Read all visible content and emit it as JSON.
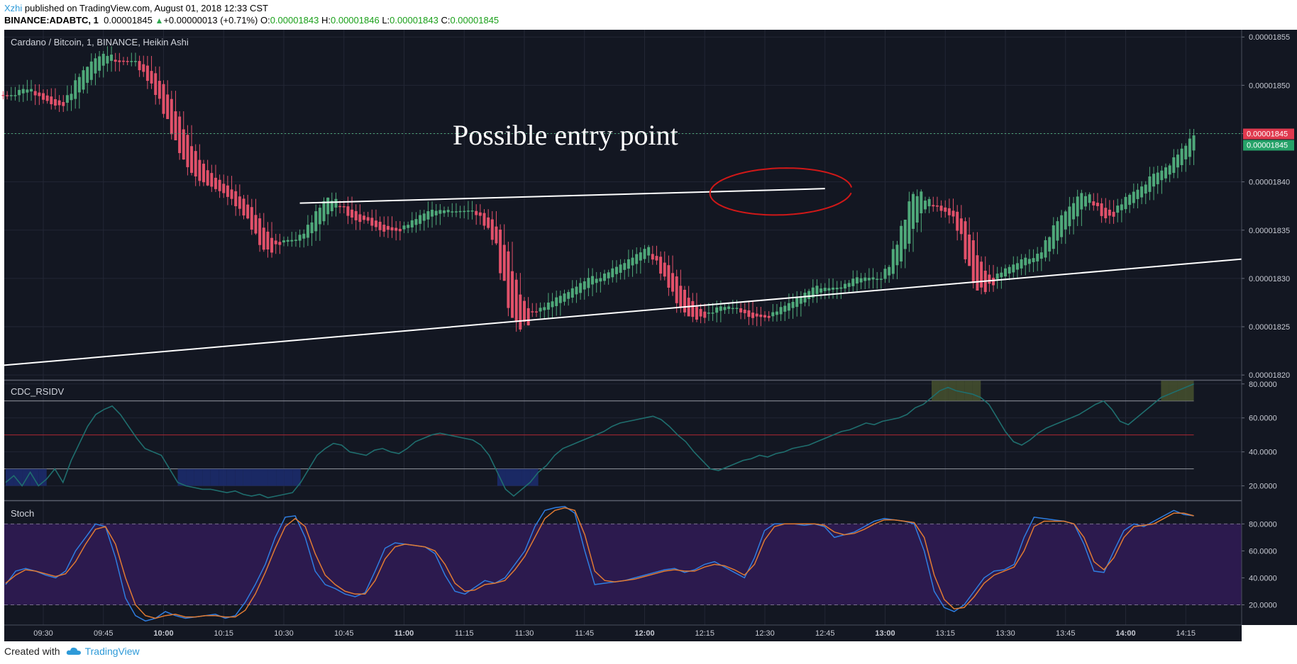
{
  "header": {
    "author": "Xzhi",
    "published_text": "published on TradingView.com, August 01, 2018 12:33 CST",
    "symbol": "BINANCE:ADABTC, 1",
    "last_price": "0.00001845",
    "change": "+0.00000013 (+0.71%)",
    "o_label": "O:",
    "o_value": "0.00001843",
    "h_label": "H:",
    "h_value": "0.00001846",
    "l_label": "L:",
    "l_value": "0.00001843",
    "c_label": "C:",
    "c_value": "0.00001845"
  },
  "footer": {
    "created_with": "Created with",
    "brand": "TradingView"
  },
  "chart_data": [
    {
      "type": "candlestick",
      "title": "Cardano / Bitcoin, 1, BINANCE, Heikin Ashi",
      "annotation": "Possible entry point",
      "y_ticks": [
        "0.00001855",
        "0.00001850",
        "0.00001845",
        "0.00001840",
        "0.00001835",
        "0.00001830",
        "0.00001825",
        "0.00001820"
      ],
      "ylim": [
        1.8195e-05,
        1.85575e-05
      ],
      "price_labels": [
        {
          "text": "0.00001845",
          "value": 1.845e-05,
          "color": "#e0394e"
        },
        {
          "text": "0.00001845",
          "value": 1.845e-05,
          "color": "#26a269"
        }
      ],
      "x_ticks": [
        "09:30",
        "09:45",
        "10:00",
        "10:15",
        "10:30",
        "10:45",
        "11:00",
        "11:15",
        "11:30",
        "11:45",
        "12:00",
        "12:15",
        "12:30",
        "12:45",
        "13:00",
        "13:15",
        "13:30",
        "13:45",
        "14:00",
        "14:15"
      ],
      "bold_x_ticks": [
        "10:00",
        "11:00",
        "12:00",
        "13:00",
        "14:00"
      ],
      "start_time": "09:20",
      "close_series_time": "09:20",
      "close_series": [
        1.849e-05,
        1.849e-05,
        1.85e-05,
        1.849e-05,
        1.849e-05,
        1.848e-05,
        1.848e-05,
        1.848e-05,
        1.85e-05,
        1.851e-05,
        1.852e-05,
        1.853e-05,
        1.853e-05,
        1.853e-05,
        1.852e-05,
        1.853e-05,
        1.852e-05,
        1.851e-05,
        1.85e-05,
        1.848e-05,
        1.846e-05,
        1.844e-05,
        1.842e-05,
        1.841e-05,
        1.84e-05,
        1.84e-05,
        1.839e-05,
        1.839e-05,
        1.838e-05,
        1.837e-05,
        1.836e-05,
        1.834e-05,
        1.833e-05,
        1.833e-05,
        1.834e-05,
        1.834e-05,
        1.834e-05,
        1.835e-05,
        1.836e-05,
        1.838e-05,
        1.838e-05,
        1.838e-05,
        1.837e-05,
        1.836e-05,
        1.836e-05,
        1.836e-05,
        1.835e-05,
        1.835e-05,
        1.835e-05,
        1.835e-05,
        1.836e-05,
        1.836e-05,
        1.837e-05,
        1.837e-05,
        1.837e-05,
        1.837e-05,
        1.837e-05,
        1.837e-05,
        1.837e-05,
        1.836e-05,
        1.835e-05,
        1.833e-05,
        1.828e-05,
        1.826e-05,
        1.825e-05,
        1.826e-05,
        1.827e-05,
        1.827e-05,
        1.828e-05,
        1.828e-05,
        1.829e-05,
        1.829e-05,
        1.83e-05,
        1.83e-05,
        1.83e-05,
        1.831e-05,
        1.831e-05,
        1.832e-05,
        1.832e-05,
        1.833e-05,
        1.833e-05,
        1.831e-05,
        1.83e-05,
        1.828e-05,
        1.827e-05,
        1.826e-05,
        1.826e-05,
        1.826e-05,
        1.827e-05,
        1.827e-05,
        1.827e-05,
        1.827e-05,
        1.826e-05,
        1.826e-05,
        1.826e-05,
        1.826e-05,
        1.827e-05,
        1.827e-05,
        1.828e-05,
        1.828e-05,
        1.829e-05,
        1.829e-05,
        1.829e-05,
        1.829e-05,
        1.829e-05,
        1.83e-05,
        1.83e-05,
        1.83e-05,
        1.83e-05,
        1.83e-05,
        1.832e-05,
        1.834e-05,
        1.837e-05,
        1.839e-05,
        1.838e-05,
        1.838e-05,
        1.837e-05,
        1.837e-05,
        1.836e-05,
        1.834e-05,
        1.83e-05,
        1.829e-05,
        1.829e-05,
        1.83e-05,
        1.831e-05,
        1.831e-05,
        1.832e-05,
        1.832e-05,
        1.832e-05,
        1.833e-05,
        1.835e-05,
        1.836e-05,
        1.837e-05,
        1.838e-05,
        1.839e-05,
        1.838e-05,
        1.837e-05,
        1.836e-05,
        1.837e-05,
        1.838e-05,
        1.839e-05,
        1.839e-05,
        1.84e-05,
        1.841e-05,
        1.841e-05,
        1.842e-05,
        1.843e-05,
        1.844e-05,
        1.845e-05
      ],
      "trendlines": [
        {
          "from": {
            "time": "09:20",
            "price": 1.821e-05
          },
          "to": {
            "time": "14:45",
            "price": 1.832e-05
          }
        },
        {
          "from": {
            "time": "10:34",
            "price": 1.8378e-05
          },
          "to": {
            "time": "12:45",
            "price": 1.8393e-05
          }
        }
      ],
      "ellipse": {
        "center": {
          "time": "12:34",
          "price": 1.839e-05
        },
        "color": "#d01818"
      }
    },
    {
      "type": "line",
      "title": "CDC_RSIDV",
      "y_ticks": [
        "80.0000",
        "60.0000",
        "40.0000",
        "20.0000"
      ],
      "ylim": [
        11.5,
        82
      ],
      "levels": [
        70,
        50,
        30
      ],
      "series": [
        {
          "values": [
            22,
            26,
            20,
            28,
            20,
            24,
            30,
            22,
            35,
            45,
            55,
            62,
            65,
            67,
            62,
            55,
            48,
            42,
            40,
            38,
            30,
            22,
            20,
            19,
            18,
            18,
            17,
            16,
            17,
            15,
            14,
            15,
            13,
            14,
            15,
            16,
            22,
            30,
            38,
            42,
            45,
            44,
            40,
            39,
            38,
            41,
            42,
            40,
            39,
            42,
            46,
            48,
            50,
            51,
            50,
            49,
            48,
            47,
            44,
            38,
            28,
            18,
            14,
            18,
            22,
            28,
            32,
            38,
            42,
            44,
            46,
            48,
            50,
            52,
            55,
            57,
            58,
            59,
            60,
            61,
            59,
            55,
            50,
            46,
            40,
            35,
            30,
            29,
            31,
            33,
            35,
            36,
            38,
            37,
            39,
            40,
            42,
            43,
            44,
            46,
            48,
            50,
            52,
            53,
            55,
            57,
            56,
            58,
            59,
            60,
            62,
            66,
            68,
            72,
            76,
            78,
            76,
            75,
            74,
            72,
            68,
            60,
            52,
            46,
            44,
            47,
            51,
            54,
            56,
            58,
            60,
            62,
            65,
            68,
            70,
            65,
            58,
            56,
            60,
            64,
            68,
            72,
            74,
            76,
            78,
            80
          ]
        }
      ]
    },
    {
      "type": "line",
      "title": "Stoch",
      "y_ticks": [
        "80.0000",
        "60.0000",
        "40.0000",
        "20.0000"
      ],
      "ylim": [
        5,
        97
      ],
      "band": [
        20,
        80
      ],
      "series": [
        {
          "color": "#2f7de0",
          "values": [
            35,
            45,
            47,
            45,
            42,
            40,
            45,
            60,
            70,
            80,
            78,
            55,
            25,
            12,
            8,
            10,
            15,
            12,
            10,
            11,
            12,
            13,
            10,
            12,
            22,
            35,
            50,
            70,
            85,
            86,
            70,
            45,
            35,
            32,
            28,
            26,
            29,
            45,
            62,
            66,
            65,
            64,
            63,
            58,
            42,
            30,
            28,
            33,
            38,
            36,
            40,
            50,
            60,
            78,
            90,
            92,
            93,
            88,
            60,
            35,
            36,
            37,
            38,
            40,
            42,
            44,
            46,
            47,
            44,
            46,
            50,
            52,
            48,
            44,
            40,
            55,
            75,
            80,
            80,
            80,
            79,
            80,
            78,
            70,
            72,
            74,
            78,
            82,
            84,
            83,
            82,
            80,
            60,
            30,
            18,
            15,
            20,
            30,
            40,
            45,
            46,
            50,
            70,
            85,
            84,
            83,
            82,
            80,
            65,
            45,
            44,
            60,
            75,
            80,
            78,
            82,
            86,
            90,
            87,
            86
          ]
        },
        {
          "color": "#e07a32",
          "values": [
            36,
            42,
            46,
            45,
            43,
            41,
            43,
            52,
            65,
            76,
            78,
            65,
            40,
            20,
            12,
            10,
            12,
            13,
            11,
            11,
            12,
            12,
            11,
            11,
            16,
            28,
            44,
            62,
            78,
            84,
            78,
            58,
            42,
            35,
            30,
            28,
            28,
            38,
            54,
            63,
            65,
            64,
            63,
            60,
            50,
            36,
            30,
            31,
            35,
            36,
            38,
            46,
            56,
            70,
            84,
            90,
            92,
            90,
            72,
            45,
            38,
            37,
            38,
            39,
            41,
            43,
            45,
            46,
            45,
            45,
            48,
            50,
            49,
            46,
            42,
            50,
            68,
            78,
            80,
            80,
            80,
            80,
            79,
            74,
            72,
            73,
            76,
            80,
            83,
            83,
            82,
            81,
            70,
            42,
            24,
            17,
            18,
            26,
            36,
            42,
            45,
            48,
            60,
            78,
            82,
            82,
            82,
            80,
            70,
            52,
            46,
            55,
            70,
            78,
            79,
            80,
            84,
            88,
            88,
            86
          ]
        }
      ]
    }
  ]
}
